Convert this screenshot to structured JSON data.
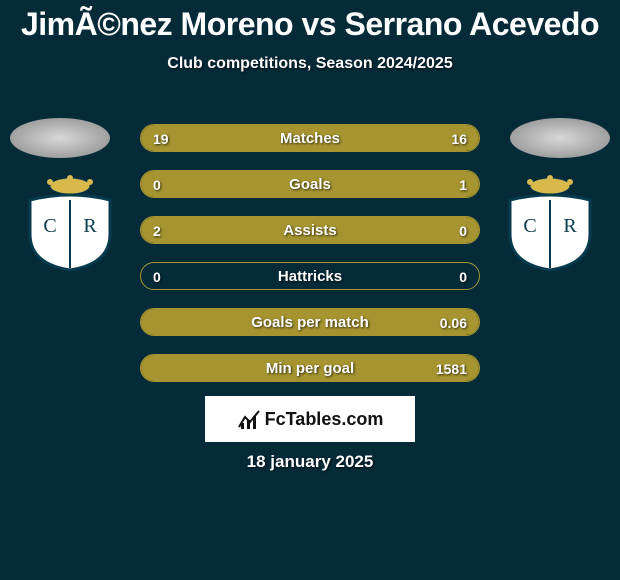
{
  "header": {
    "title": "JimÃ©nez Moreno vs Serrano Acevedo",
    "subtitle": "Club competitions, Season 2024/2025"
  },
  "colors": {
    "background": "#052b39",
    "accent": "#a5942f",
    "text": "#ffffff"
  },
  "stats": [
    {
      "label": "Matches",
      "left_val": "19",
      "right_val": "16",
      "left_pct": 54,
      "right_pct": 46
    },
    {
      "label": "Goals",
      "left_val": "0",
      "right_val": "1",
      "left_pct": 0,
      "right_pct": 100
    },
    {
      "label": "Assists",
      "left_val": "2",
      "right_val": "0",
      "left_pct": 100,
      "right_pct": 0
    },
    {
      "label": "Hattricks",
      "left_val": "0",
      "right_val": "0",
      "left_pct": 0,
      "right_pct": 0
    },
    {
      "label": "Goals per match",
      "left_val": "",
      "right_val": "0.06",
      "left_pct": 0,
      "right_pct": 100
    },
    {
      "label": "Min per goal",
      "left_val": "",
      "right_val": "1581",
      "left_pct": 0,
      "right_pct": 100
    }
  ],
  "brand": {
    "label": "FcTables.com"
  },
  "date": "18 january 2025",
  "crest": {
    "shield_fill": "#ffffff",
    "shield_stroke": "#073a4c",
    "crown_fill": "#d8b84a"
  }
}
